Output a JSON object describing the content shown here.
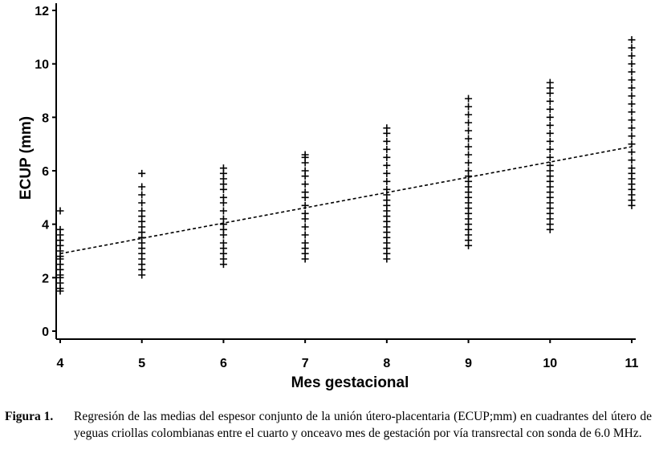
{
  "chart_data": {
    "type": "scatter",
    "xlabel": "Mes gestacional",
    "ylabel": "ECUP (mm)",
    "xlim": [
      4,
      11
    ],
    "ylim": [
      0,
      12
    ],
    "x_ticks": [
      "4",
      "5",
      "6",
      "7",
      "8",
      "9",
      "10",
      "11"
    ],
    "y_ticks": [
      "0",
      "2",
      "4",
      "6",
      "8",
      "10",
      "12"
    ],
    "marker": "plus",
    "grid": false,
    "legend": "none",
    "points": [
      {
        "x": 4,
        "y": [
          1.5,
          1.6,
          1.8,
          2.0,
          2.1,
          2.3,
          2.5,
          2.7,
          2.8,
          3.0,
          3.2,
          3.4,
          3.6,
          3.8,
          4.5
        ]
      },
      {
        "x": 5,
        "y": [
          2.1,
          2.3,
          2.5,
          2.7,
          2.9,
          3.1,
          3.3,
          3.5,
          3.7,
          3.9,
          4.1,
          4.3,
          4.5,
          4.8,
          5.1,
          5.4,
          5.9
        ]
      },
      {
        "x": 6,
        "y": [
          2.5,
          2.7,
          2.9,
          3.1,
          3.3,
          3.6,
          3.8,
          4.0,
          4.2,
          4.5,
          4.8,
          5.0,
          5.3,
          5.5,
          5.7,
          5.9,
          6.1
        ]
      },
      {
        "x": 7,
        "y": [
          2.7,
          2.9,
          3.1,
          3.3,
          3.6,
          3.9,
          4.2,
          4.4,
          4.7,
          5.0,
          5.2,
          5.5,
          5.8,
          6.0,
          6.3,
          6.5,
          6.6
        ]
      },
      {
        "x": 8,
        "y": [
          2.7,
          2.9,
          3.1,
          3.3,
          3.5,
          3.7,
          3.9,
          4.1,
          4.3,
          4.5,
          4.7,
          4.9,
          5.1,
          5.3,
          5.6,
          5.9,
          6.2,
          6.5,
          6.8,
          7.1,
          7.4,
          7.6
        ]
      },
      {
        "x": 9,
        "y": [
          3.2,
          3.4,
          3.6,
          3.8,
          4.0,
          4.2,
          4.4,
          4.6,
          4.8,
          5.0,
          5.2,
          5.4,
          5.6,
          5.8,
          6.0,
          6.3,
          6.6,
          6.9,
          7.2,
          7.5,
          7.8,
          8.1,
          8.4,
          8.7
        ]
      },
      {
        "x": 10,
        "y": [
          3.8,
          4.0,
          4.2,
          4.4,
          4.6,
          4.8,
          5.0,
          5.2,
          5.4,
          5.6,
          5.8,
          6.0,
          6.2,
          6.5,
          6.8,
          7.1,
          7.4,
          7.7,
          8.0,
          8.3,
          8.6,
          8.9,
          9.1,
          9.3
        ]
      },
      {
        "x": 11,
        "y": [
          4.7,
          4.9,
          5.1,
          5.3,
          5.5,
          5.7,
          5.9,
          6.1,
          6.4,
          6.7,
          7.0,
          7.3,
          7.6,
          7.9,
          8.2,
          8.5,
          8.8,
          9.1,
          9.4,
          9.7,
          10.0,
          10.3,
          10.6,
          10.9
        ]
      }
    ],
    "regression_line": {
      "style": "dashed",
      "x": [
        4,
        11
      ],
      "y": [
        2.9,
        6.9
      ]
    }
  },
  "caption": {
    "label": "Figura 1.",
    "text": "Regresión de las medias del espesor conjunto de la unión útero-placentaria (ECUP;mm) en cuadrantes del útero de yeguas criollas colombianas entre el cuarto y onceavo mes de gestación por vía transrectal con sonda de 6.0 MHz."
  }
}
